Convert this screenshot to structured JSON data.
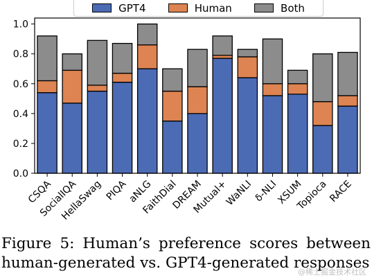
{
  "chart_data": {
    "type": "bar",
    "stacked": true,
    "categories": [
      "CSQA",
      "SocialIQA",
      "HellaSwag",
      "PIQA",
      "aNLG",
      "FaithDial",
      "DREAM",
      "Mutual+",
      "WaNLI",
      "δ-NLI",
      "XSUM",
      "Topioca",
      "RACE"
    ],
    "series": [
      {
        "name": "GPT4",
        "color": "#4c6bb5",
        "values": [
          0.54,
          0.47,
          0.55,
          0.61,
          0.7,
          0.35,
          0.4,
          0.77,
          0.64,
          0.52,
          0.53,
          0.32,
          0.45
        ]
      },
      {
        "name": "Human",
        "color": "#dd8452",
        "values": [
          0.08,
          0.22,
          0.04,
          0.06,
          0.16,
          0.2,
          0.18,
          0.02,
          0.14,
          0.08,
          0.07,
          0.16,
          0.07
        ]
      },
      {
        "name": "Both",
        "color": "#8c8c8c",
        "values": [
          0.3,
          0.11,
          0.3,
          0.2,
          0.14,
          0.15,
          0.25,
          0.13,
          0.05,
          0.3,
          0.09,
          0.32,
          0.29
        ]
      }
    ],
    "yticks": [
      "0.0",
      "0.2",
      "0.4",
      "0.6",
      "0.8",
      "1.0"
    ],
    "ylim": [
      0,
      1.04
    ],
    "xlabel": "",
    "ylabel": "",
    "legend_position": "top-center"
  },
  "caption": "Figure 5:  Human’s preference scores between human-generated vs. GPT4-generated responses",
  "watermark": "@稀土掘金技术社区"
}
